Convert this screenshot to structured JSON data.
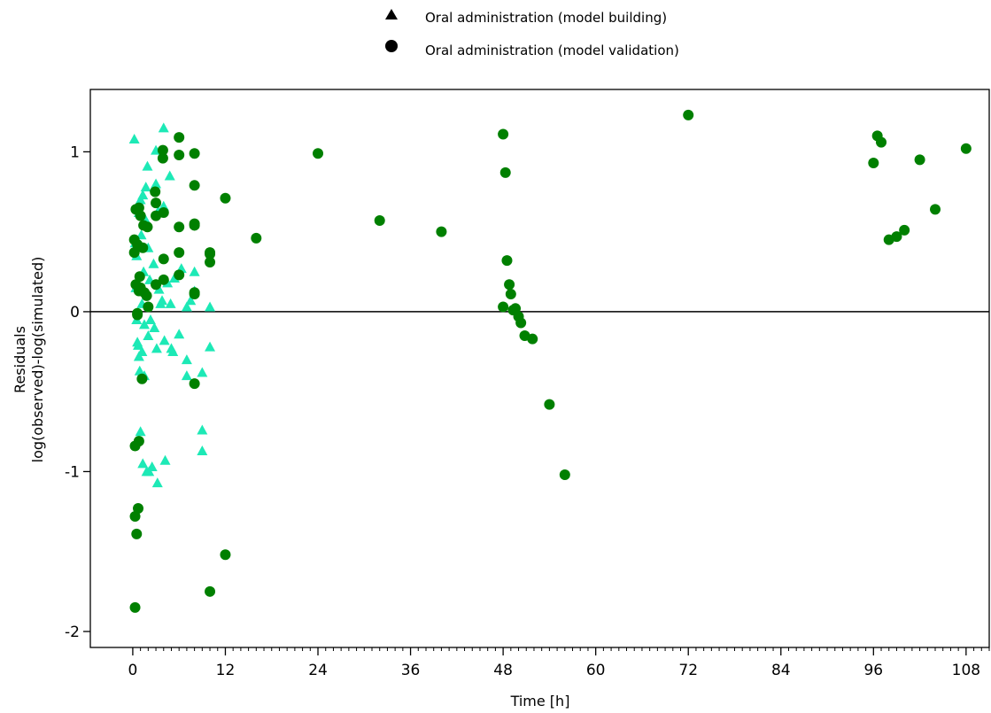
{
  "chart_data": {
    "type": "scatter",
    "title": "",
    "xlabel": "Time [h]",
    "ylabel": [
      "Residuals",
      "log(observed)-log(simulated)"
    ],
    "xlim": [
      -5.5,
      111
    ],
    "ylim": [
      -2.1,
      1.39
    ],
    "x_ticks": [
      0,
      12,
      24,
      36,
      48,
      60,
      72,
      84,
      96,
      108
    ],
    "x_minor_step": 1,
    "y_ticks": [
      -2,
      -1,
      0,
      1
    ],
    "zero_line": 0,
    "grid": false,
    "legend_position": "top-center",
    "legend": [
      {
        "label": "Oral administration (model building)",
        "marker": "triangle"
      },
      {
        "label": "Oral administration (model validation)",
        "marker": "circle"
      }
    ],
    "series": [
      {
        "name": "Oral administration (model building)",
        "marker": "triangle",
        "color": "#1de9b6",
        "points": [
          [
            0.2,
            1.08
          ],
          [
            0.3,
            0.43
          ],
          [
            0.4,
            0.15
          ],
          [
            0.5,
            0.35
          ],
          [
            0.5,
            -0.05
          ],
          [
            0.6,
            -0.19
          ],
          [
            0.7,
            -0.21
          ],
          [
            0.8,
            0.62
          ],
          [
            0.8,
            -0.28
          ],
          [
            0.9,
            -0.37
          ],
          [
            1.0,
            0.7
          ],
          [
            1.0,
            -0.75
          ],
          [
            1.1,
            0.48
          ],
          [
            1.2,
            0.05
          ],
          [
            1.2,
            -0.25
          ],
          [
            1.3,
            0.73
          ],
          [
            1.3,
            -0.95
          ],
          [
            1.4,
            0.25
          ],
          [
            1.5,
            -0.08
          ],
          [
            1.5,
            -0.4
          ],
          [
            1.6,
            0.58
          ],
          [
            1.7,
            0.78
          ],
          [
            1.8,
            -1.0
          ],
          [
            1.9,
            0.91
          ],
          [
            2.0,
            0.4
          ],
          [
            2.0,
            -0.15
          ],
          [
            2.1,
            -1.0
          ],
          [
            2.2,
            0.2
          ],
          [
            2.3,
            -0.05
          ],
          [
            2.5,
            -0.97
          ],
          [
            2.7,
            0.3
          ],
          [
            2.8,
            -0.1
          ],
          [
            3.0,
            1.01
          ],
          [
            3.0,
            0.8
          ],
          [
            3.1,
            -0.23
          ],
          [
            3.2,
            -1.07
          ],
          [
            3.3,
            0.63
          ],
          [
            3.4,
            0.14
          ],
          [
            3.6,
            0.05
          ],
          [
            3.8,
            0.07
          ],
          [
            4.0,
            1.15
          ],
          [
            4.0,
            0.66
          ],
          [
            4.1,
            -0.18
          ],
          [
            4.2,
            -0.93
          ],
          [
            4.5,
            0.18
          ],
          [
            4.8,
            0.85
          ],
          [
            4.9,
            0.05
          ],
          [
            5.0,
            -0.23
          ],
          [
            5.2,
            -0.25
          ],
          [
            5.4,
            0.21
          ],
          [
            6.0,
            -0.14
          ],
          [
            6.3,
            0.27
          ],
          [
            7.0,
            0.03
          ],
          [
            7.0,
            -0.3
          ],
          [
            7.0,
            -0.4
          ],
          [
            7.5,
            0.07
          ],
          [
            8.0,
            0.13
          ],
          [
            8.0,
            0.25
          ],
          [
            9.0,
            -0.74
          ],
          [
            9.0,
            -0.38
          ],
          [
            9.0,
            -0.87
          ],
          [
            10.0,
            0.03
          ],
          [
            10.0,
            -0.22
          ]
        ]
      },
      {
        "name": "Oral administration (model validation)",
        "marker": "circle",
        "color": "#008000",
        "points": [
          [
            0.2,
            0.45
          ],
          [
            0.2,
            0.37
          ],
          [
            0.3,
            -0.84
          ],
          [
            0.3,
            -1.28
          ],
          [
            0.3,
            -1.85
          ],
          [
            0.4,
            0.64
          ],
          [
            0.4,
            0.17
          ],
          [
            0.5,
            -1.39
          ],
          [
            0.6,
            0.42
          ],
          [
            0.6,
            -0.01
          ],
          [
            0.6,
            -0.02
          ],
          [
            0.7,
            -1.23
          ],
          [
            0.8,
            0.65
          ],
          [
            0.8,
            0.13
          ],
          [
            0.8,
            -0.81
          ],
          [
            0.9,
            0.22
          ],
          [
            1.0,
            0.6
          ],
          [
            1.0,
            0.15
          ],
          [
            1.2,
            -0.42
          ],
          [
            1.3,
            0.4
          ],
          [
            1.4,
            0.54
          ],
          [
            1.5,
            0.12
          ],
          [
            1.8,
            0.1
          ],
          [
            1.9,
            0.53
          ],
          [
            2.0,
            0.03
          ],
          [
            2.9,
            0.75
          ],
          [
            3.0,
            0.68
          ],
          [
            3.0,
            0.6
          ],
          [
            3.0,
            0.17
          ],
          [
            3.9,
            1.01
          ],
          [
            3.9,
            0.96
          ],
          [
            4.0,
            0.62
          ],
          [
            4.0,
            0.33
          ],
          [
            4.0,
            0.2
          ],
          [
            6.0,
            1.09
          ],
          [
            6.0,
            0.98
          ],
          [
            6.0,
            0.53
          ],
          [
            6.0,
            0.37
          ],
          [
            6.0,
            0.23
          ],
          [
            8.0,
            0.99
          ],
          [
            8.0,
            0.79
          ],
          [
            8.0,
            0.55
          ],
          [
            8.0,
            0.54
          ],
          [
            8.0,
            0.12
          ],
          [
            8.0,
            0.11
          ],
          [
            8.0,
            -0.45
          ],
          [
            10.0,
            0.37
          ],
          [
            10.0,
            0.36
          ],
          [
            10.0,
            0.31
          ],
          [
            10.0,
            -1.75
          ],
          [
            12.0,
            0.71
          ],
          [
            12.0,
            -1.52
          ],
          [
            16.0,
            0.46
          ],
          [
            24.0,
            0.99
          ],
          [
            32.0,
            0.57
          ],
          [
            40.0,
            0.5
          ],
          [
            48.0,
            1.11
          ],
          [
            48.0,
            0.03
          ],
          [
            48.3,
            0.87
          ],
          [
            48.5,
            0.32
          ],
          [
            48.8,
            0.17
          ],
          [
            49.0,
            0.11
          ],
          [
            49.3,
            0.01
          ],
          [
            49.6,
            0.02
          ],
          [
            50.0,
            -0.03
          ],
          [
            50.3,
            -0.07
          ],
          [
            50.8,
            -0.15
          ],
          [
            51.8,
            -0.17
          ],
          [
            54.0,
            -0.58
          ],
          [
            56.0,
            -1.02
          ],
          [
            72.0,
            1.23
          ],
          [
            96.0,
            0.93
          ],
          [
            96.5,
            1.1
          ],
          [
            97.0,
            1.06
          ],
          [
            98.0,
            0.45
          ],
          [
            99.0,
            0.47
          ],
          [
            100.0,
            0.51
          ],
          [
            102.0,
            0.95
          ],
          [
            104.0,
            0.64
          ],
          [
            108.0,
            1.02
          ]
        ]
      }
    ]
  }
}
